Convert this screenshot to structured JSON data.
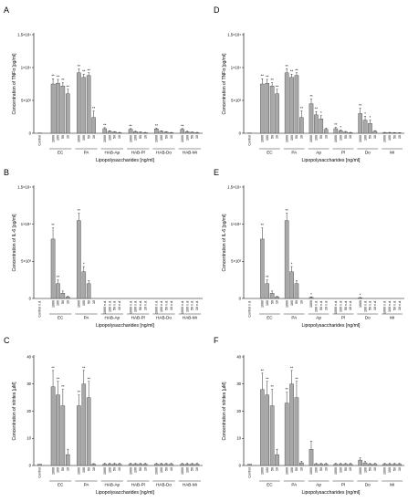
{
  "chart_data": [
    {
      "panel": "A",
      "type": "bar",
      "ylabel": "Concentration of TNFα [pg/ml]",
      "xlabel": "Lipopolysaccharides [ng/ml]",
      "yticks": [
        "0",
        "5×10³",
        "1×10⁴",
        "1.5×10⁴"
      ],
      "ymax": 15000,
      "control": {
        "label": "Control",
        "value": 50
      },
      "groups": [
        {
          "name": "EC",
          "doses": [
            "1000",
            "100",
            "50",
            "10"
          ],
          "values": [
            7500,
            7600,
            7200,
            6000
          ],
          "errors": [
            800,
            600,
            500,
            700
          ],
          "stars": [
            "**",
            "**",
            "**",
            "**"
          ]
        },
        {
          "name": "PA",
          "doses": [
            "1000",
            "100",
            "50",
            "10"
          ],
          "values": [
            9200,
            8500,
            8800,
            2400
          ],
          "errors": [
            600,
            500,
            400,
            1000
          ],
          "stars": [
            "**",
            "**",
            "**",
            "**"
          ]
        },
        {
          "name": "HAB-Ap",
          "doses": [
            "1000",
            "100",
            "50",
            "10"
          ],
          "values": [
            700,
            300,
            200,
            100
          ],
          "errors": [
            150,
            80,
            60,
            40
          ],
          "stars": [
            "**",
            "",
            "",
            ""
          ]
        },
        {
          "name": "HAB-Pl",
          "doses": [
            "1000",
            "100",
            "50",
            "10"
          ],
          "values": [
            600,
            250,
            150,
            100
          ],
          "errors": [
            120,
            70,
            50,
            40
          ],
          "stars": [
            "**",
            "",
            "",
            ""
          ]
        },
        {
          "name": "HAB-Do",
          "doses": [
            "1000",
            "100",
            "50",
            "10"
          ],
          "values": [
            650,
            300,
            200,
            100
          ],
          "errors": [
            120,
            70,
            50,
            40
          ],
          "stars": [
            "**",
            "",
            "",
            ""
          ]
        },
        {
          "name": "HAB-Mi",
          "doses": [
            "1000",
            "100",
            "50",
            "10"
          ],
          "values": [
            600,
            250,
            150,
            100
          ],
          "errors": [
            120,
            70,
            50,
            40
          ],
          "stars": [
            "**",
            "",
            "",
            ""
          ]
        }
      ]
    },
    {
      "panel": "B",
      "type": "bar",
      "ylabel": "Concentration of IL-6 [pg/ml]",
      "xlabel": "Lipopolysaccharides [ng/ml]",
      "yticks": [
        "0",
        "5×10³",
        "1×10⁴",
        "1.5×10⁴"
      ],
      "ymax": 15000,
      "control": {
        "label": "Control",
        "value": 0,
        "note": "n.d."
      },
      "groups": [
        {
          "name": "EC",
          "doses": [
            "1000",
            "100",
            "50",
            "10"
          ],
          "values": [
            8000,
            2000,
            700,
            200
          ],
          "errors": [
            1500,
            500,
            300,
            100
          ],
          "stars": [
            "**",
            "**",
            "",
            ""
          ]
        },
        {
          "name": "PA",
          "doses": [
            "1000",
            "100",
            "50",
            "10"
          ],
          "values": [
            10500,
            3600,
            2000,
            0
          ],
          "errors": [
            1000,
            700,
            400,
            0
          ],
          "stars": [
            "**",
            "*",
            "",
            ""
          ]
        },
        {
          "name": "HAB-Ap",
          "doses": [
            "1000",
            "100",
            "50",
            "10"
          ],
          "values": [
            0,
            0,
            0,
            0
          ],
          "notes": [
            "n.d.",
            "n.d.",
            "n.d.",
            "n.d."
          ]
        },
        {
          "name": "HAB-Pl",
          "doses": [
            "1000",
            "100",
            "50",
            "10"
          ],
          "values": [
            0,
            0,
            0,
            0
          ],
          "notes": [
            "n.d.",
            "n.d.",
            "n.d.",
            "n.d."
          ]
        },
        {
          "name": "HAB-Do",
          "doses": [
            "1000",
            "100",
            "50",
            "10"
          ],
          "values": [
            0,
            0,
            0,
            0
          ],
          "notes": [
            "n.d.",
            "n.d.",
            "n.d.",
            "n.d."
          ]
        },
        {
          "name": "HAB-Mi",
          "doses": [
            "1000",
            "100",
            "50",
            "10"
          ],
          "values": [
            0,
            0,
            0,
            0
          ],
          "notes": [
            "n.d.",
            "n.d.",
            "n.d.",
            "n.d."
          ]
        }
      ]
    },
    {
      "panel": "C",
      "type": "bar",
      "ylabel": "Concentration of nitrites [µM]",
      "xlabel": "Lipopolysaccharides [ng/ml]",
      "yticks": [
        "0",
        "10",
        "20",
        "30",
        "40"
      ],
      "ymax": 40,
      "control": {
        "label": "Control",
        "value": 0.5
      },
      "groups": [
        {
          "name": "EC",
          "doses": [
            "1000",
            "100",
            "50",
            "10"
          ],
          "values": [
            29,
            26,
            22,
            4
          ],
          "errors": [
            6,
            5,
            6,
            2
          ],
          "stars": [
            "**",
            "**",
            "**",
            ""
          ]
        },
        {
          "name": "PA",
          "doses": [
            "1000",
            "100",
            "50",
            "10"
          ],
          "values": [
            22,
            30,
            25,
            0.5
          ],
          "errors": [
            4,
            5,
            6,
            0.2
          ],
          "stars": [
            "**",
            "**",
            "**",
            ""
          ]
        },
        {
          "name": "HAB-Ap",
          "doses": [
            "1000",
            "100",
            "50",
            "10"
          ],
          "values": [
            0.5,
            0.5,
            0.5,
            0.5
          ],
          "errors": [
            0.3,
            0.3,
            0.3,
            0.3
          ]
        },
        {
          "name": "HAB-Pl",
          "doses": [
            "1000",
            "100",
            "50",
            "10"
          ],
          "values": [
            0.5,
            0.5,
            0.5,
            0.5
          ],
          "errors": [
            0.3,
            0.3,
            0.3,
            0.3
          ]
        },
        {
          "name": "HAB-Do",
          "doses": [
            "1000",
            "100",
            "50",
            "10"
          ],
          "values": [
            0.5,
            0.5,
            0.5,
            0.5
          ],
          "errors": [
            0.3,
            0.3,
            0.3,
            0.3
          ]
        },
        {
          "name": "HAB-Mi",
          "doses": [
            "1000",
            "100",
            "50",
            "10"
          ],
          "values": [
            0.5,
            0.5,
            0.5,
            0.5
          ],
          "errors": [
            0.3,
            0.3,
            0.3,
            0.3
          ]
        }
      ]
    },
    {
      "panel": "D",
      "type": "bar",
      "ylabel": "Concentration of TNFα [pg/ml]",
      "xlabel": "Lipopolysaccharides [ng/ml]",
      "yticks": [
        "0",
        "5×10³",
        "1×10⁴",
        "1.5×10⁴"
      ],
      "ymax": 15000,
      "control": {
        "label": "Control",
        "value": 50
      },
      "groups": [
        {
          "name": "EC",
          "doses": [
            "1000",
            "100",
            "50",
            "10"
          ],
          "values": [
            7500,
            7600,
            7200,
            6000
          ],
          "errors": [
            800,
            600,
            500,
            700
          ],
          "stars": [
            "**",
            "**",
            "**",
            "**"
          ]
        },
        {
          "name": "PA",
          "doses": [
            "1000",
            "100",
            "50",
            "10"
          ],
          "values": [
            9200,
            8500,
            8800,
            2400
          ],
          "errors": [
            600,
            500,
            400,
            1000
          ],
          "stars": [
            "**",
            "**",
            "**",
            "**"
          ]
        },
        {
          "name": "Ap",
          "doses": [
            "1000",
            "100",
            "50",
            "10"
          ],
          "values": [
            4500,
            2800,
            2200,
            600
          ],
          "errors": [
            700,
            500,
            500,
            200
          ],
          "stars": [
            "**",
            "**",
            "*",
            ""
          ]
        },
        {
          "name": "Pl",
          "doses": [
            "1000",
            "100",
            "50",
            "10"
          ],
          "values": [
            700,
            400,
            200,
            100
          ],
          "errors": [
            200,
            100,
            80,
            40
          ],
          "stars": [
            "**",
            "*",
            "",
            ""
          ]
        },
        {
          "name": "Do",
          "doses": [
            "1000",
            "100",
            "50",
            "10"
          ],
          "values": [
            3000,
            2000,
            1500,
            300
          ],
          "errors": [
            800,
            600,
            500,
            100
          ],
          "stars": [
            "**",
            "*",
            "*",
            ""
          ]
        },
        {
          "name": "Mi",
          "doses": [
            "1000",
            "100",
            "50",
            "10"
          ],
          "values": [
            100,
            100,
            80,
            60
          ],
          "errors": [
            40,
            40,
            30,
            20
          ]
        }
      ]
    },
    {
      "panel": "E",
      "type": "bar",
      "ylabel": "Concentration of IL-6 [pg/ml]",
      "xlabel": "Lipopolysaccharides [ng/ml]",
      "yticks": [
        "0",
        "5×10³",
        "1×10⁴",
        "1.5×10⁴"
      ],
      "ymax": 15000,
      "control": {
        "label": "Control",
        "value": 0,
        "note": "n.d."
      },
      "groups": [
        {
          "name": "EC",
          "doses": [
            "1000",
            "100",
            "50",
            "10"
          ],
          "values": [
            8000,
            2000,
            700,
            200
          ],
          "errors": [
            1500,
            500,
            300,
            100
          ],
          "stars": [
            "**",
            "**",
            "",
            ""
          ]
        },
        {
          "name": "PA",
          "doses": [
            "1000",
            "100",
            "50",
            "10"
          ],
          "values": [
            10500,
            3600,
            2000,
            0
          ],
          "errors": [
            1000,
            700,
            400,
            0
          ],
          "stars": [
            "**",
            "*",
            "",
            ""
          ]
        },
        {
          "name": "Ap",
          "doses": [
            "1000",
            "100",
            "50",
            "10"
          ],
          "values": [
            150,
            0,
            0,
            0
          ],
          "errors": [
            60,
            0,
            0,
            0
          ],
          "stars": [
            "*",
            "",
            "",
            ""
          ],
          "notes": [
            "",
            "n.d.",
            "n.d.",
            "n.d."
          ]
        },
        {
          "name": "Pl",
          "doses": [
            "1000",
            "100",
            "50",
            "10"
          ],
          "values": [
            0,
            0,
            0,
            0
          ],
          "notes": [
            "n.d.",
            "n.d.",
            "n.d.",
            "n.d."
          ]
        },
        {
          "name": "Do",
          "doses": [
            "1000",
            "100",
            "50",
            "10"
          ],
          "values": [
            100,
            0,
            0,
            0
          ],
          "errors": [
            40,
            0,
            0,
            0
          ],
          "stars": [
            "*",
            "",
            "",
            ""
          ],
          "notes": [
            "",
            "n.d.",
            "n.d.",
            "n.d."
          ]
        },
        {
          "name": "Mi",
          "doses": [
            "1000",
            "100",
            "50",
            "10"
          ],
          "values": [
            0,
            0,
            0,
            0
          ],
          "notes": [
            "n.d.",
            "n.d.",
            "n.d.",
            "n.d."
          ]
        }
      ]
    },
    {
      "panel": "F",
      "type": "bar",
      "ylabel": "Concentration of nitrites [µM]",
      "xlabel": "Lipopolysaccharides [ng/ml]",
      "yticks": [
        "0",
        "10",
        "20",
        "30",
        "40"
      ],
      "ymax": 40,
      "control": {
        "label": "Control",
        "value": 0.5
      },
      "groups": [
        {
          "name": "EC",
          "doses": [
            "1000",
            "100",
            "50",
            "10"
          ],
          "values": [
            28,
            26,
            22,
            4
          ],
          "errors": [
            6,
            5,
            6,
            2
          ],
          "stars": [
            "**",
            "**",
            "**",
            ""
          ]
        },
        {
          "name": "PA",
          "doses": [
            "1000",
            "100",
            "50",
            "10"
          ],
          "values": [
            23,
            30,
            25,
            1
          ],
          "errors": [
            4,
            5,
            6,
            0.5
          ],
          "stars": [
            "**",
            "**",
            "**",
            ""
          ]
        },
        {
          "name": "Ap",
          "doses": [
            "1000",
            "100",
            "50",
            "10"
          ],
          "values": [
            6,
            0.5,
            0.5,
            0.5
          ],
          "errors": [
            3,
            0.3,
            0.3,
            0.3
          ]
        },
        {
          "name": "Pl",
          "doses": [
            "1000",
            "100",
            "50",
            "10"
          ],
          "values": [
            0.5,
            0.5,
            0.5,
            0.5
          ],
          "errors": [
            0.3,
            0.3,
            0.3,
            0.3
          ]
        },
        {
          "name": "Do",
          "doses": [
            "1000",
            "100",
            "50",
            "10"
          ],
          "values": [
            2,
            1,
            0.5,
            0.5
          ],
          "errors": [
            0.8,
            0.5,
            0.3,
            0.3
          ]
        },
        {
          "name": "Mi",
          "doses": [
            "1000",
            "100",
            "50",
            "10"
          ],
          "values": [
            0.5,
            0.5,
            0.5,
            0.5
          ],
          "errors": [
            0.3,
            0.3,
            0.3,
            0.3
          ]
        }
      ]
    }
  ]
}
